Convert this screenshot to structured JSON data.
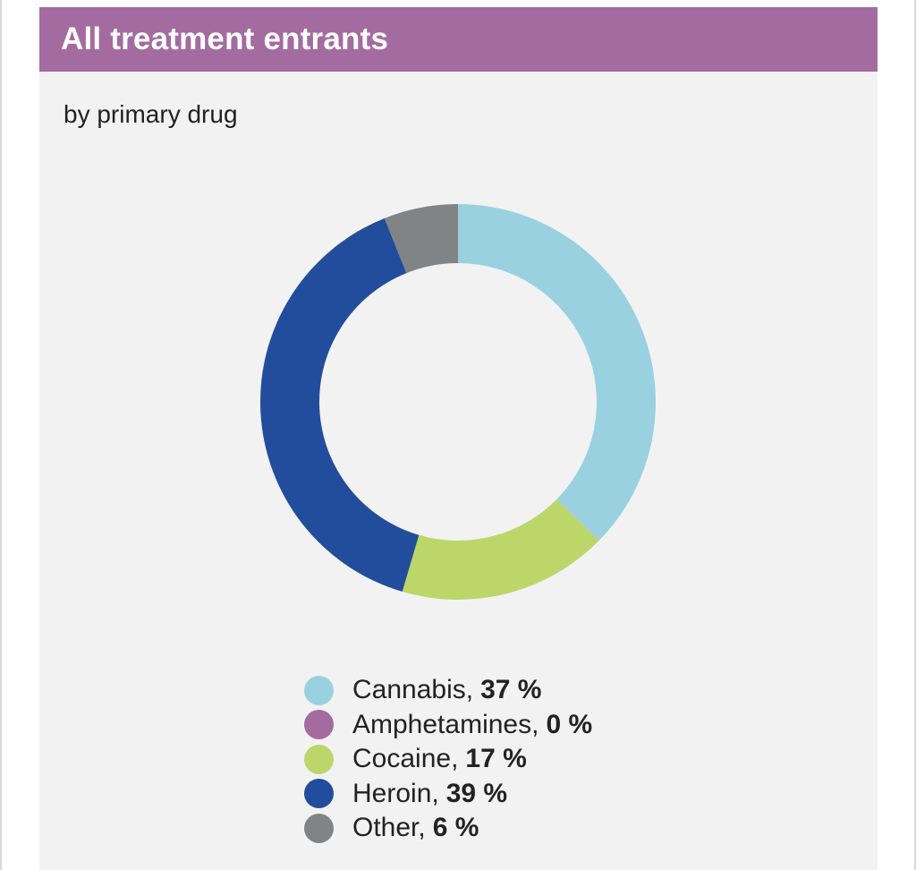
{
  "card": {
    "title": "All treatment entrants",
    "subtitle": "by primary drug"
  },
  "colors": {
    "header": "#a46ba0",
    "panel": "#f2f2f2"
  },
  "chart_data": {
    "type": "pie",
    "variant": "donut",
    "title": "All treatment entrants",
    "subtitle": "by primary drug",
    "unit": "%",
    "legend_position": "bottom",
    "categories": [
      "Cannabis",
      "Amphetamines",
      "Cocaine",
      "Heroin",
      "Other"
    ],
    "values": [
      37,
      0,
      17,
      39,
      6
    ],
    "colors": [
      "#99d1e1",
      "#a46ba0",
      "#bcd66a",
      "#214d9c",
      "#828385"
    ],
    "legend": [
      {
        "label": "Cannabis,",
        "value": "37 %"
      },
      {
        "label": "Amphetamines,",
        "value": "0 %"
      },
      {
        "label": "Cocaine,",
        "value": "17 %"
      },
      {
        "label": "Heroin,",
        "value": "39 %"
      },
      {
        "label": "Other,",
        "value": "6 %"
      }
    ]
  }
}
